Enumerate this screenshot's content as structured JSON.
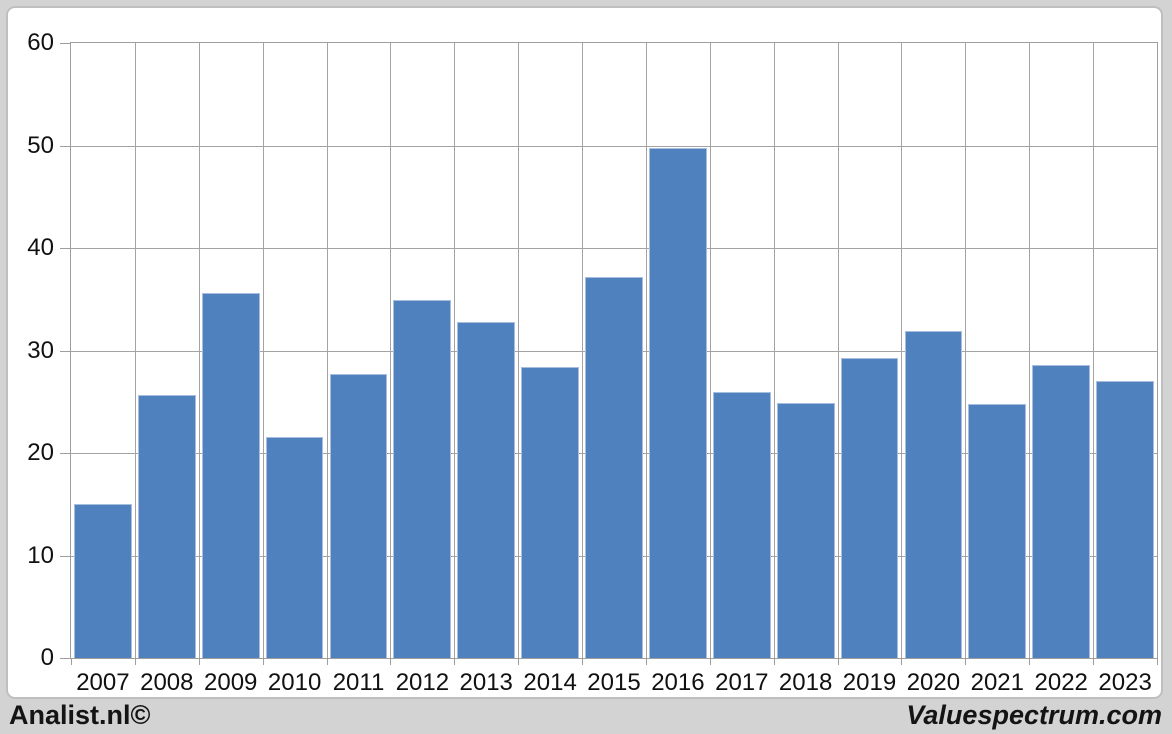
{
  "chart_data": {
    "type": "bar",
    "title": "",
    "categories": [
      "2007",
      "2008",
      "2009",
      "2010",
      "2011",
      "2012",
      "2013",
      "2014",
      "2015",
      "2016",
      "2017",
      "2018",
      "2019",
      "2020",
      "2021",
      "2022",
      "2023"
    ],
    "values": [
      15.0,
      25.7,
      35.6,
      21.6,
      27.7,
      34.9,
      32.8,
      28.4,
      37.2,
      49.8,
      26.0,
      24.9,
      29.3,
      31.9,
      24.8,
      28.6,
      27.0
    ],
    "xlabel": "",
    "ylabel": "",
    "ylim": [
      0,
      60
    ],
    "yticks": [
      0,
      10,
      20,
      30,
      40,
      50,
      60
    ],
    "grid": true,
    "legend": "none",
    "bar_color": "#4e81bd",
    "bar_border_color": "#a9bedd",
    "gridline_color": "#a3a3a3",
    "plot_background": "#ffffff",
    "frame_background": "#d3d3d3"
  },
  "footer": {
    "left_label": "Analist.nl©",
    "right_label": "Valuespectrum.com"
  }
}
